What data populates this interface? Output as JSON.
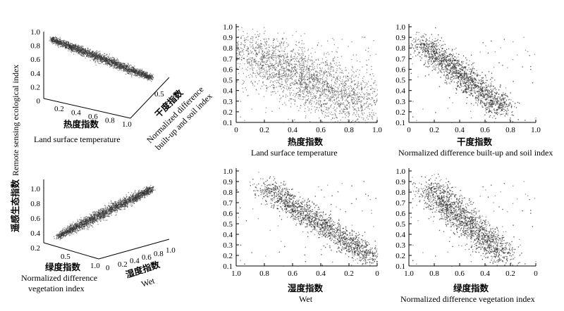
{
  "figure": {
    "y_label_cn": "遥感生态指数",
    "y_label_en": "Remote sensing ecological index"
  },
  "chart_data": [
    {
      "id": "p3d_top",
      "type": "scatter",
      "projection": "3d",
      "z_label": "",
      "z_ticks": [
        "0",
        "0.2",
        "0.4",
        "0.6",
        "0.8",
        "1.0"
      ],
      "x_label_cn": "热度指数",
      "x_label_en": "Land surface temperature",
      "x_ticks": [
        "0.2",
        "0.4",
        "0.6",
        "0.8",
        "1.0"
      ],
      "y_label_cn": "干度指数",
      "y_label_en": "Normalized difference built-up and soil index",
      "y_label_en_lines": [
        "Normalized difference",
        "built-up and soil index"
      ],
      "y_ticks": [
        "0.5"
      ],
      "trend": {
        "from": [
          0.05,
          0.9
        ],
        "to": [
          1.0,
          0.3
        ]
      },
      "n_points": 2400
    },
    {
      "id": "p3d_bottom",
      "type": "scatter",
      "projection": "3d",
      "z_ticks": [
        "0.2",
        "0.4",
        "0.6",
        "0.8",
        "1.0"
      ],
      "x_label_cn": "绿度指数",
      "x_label_en": "Normalized difference vegetation index",
      "x_label_en_lines": [
        "Normalized difference",
        "vegetation index"
      ],
      "x_ticks": [
        "0.5",
        "1.0"
      ],
      "y_label_cn": "湿度指数",
      "y_label_en": "Wet",
      "y_ticks": [
        "0",
        "0.2",
        "0.4",
        "0.6",
        "0.8",
        "1.0"
      ],
      "trend": {
        "from": [
          0.0,
          0.2
        ],
        "to": [
          1.0,
          0.8
        ]
      },
      "n_points": 2400
    },
    {
      "id": "lst",
      "type": "scatter",
      "xlabel_cn": "热度指数",
      "xlabel_en": "Land surface temperature",
      "x_ticks": [
        "0",
        "0.2",
        "0.4",
        "0.6",
        "0.8",
        "1.0"
      ],
      "y_ticks": [
        "0.1",
        "0.2",
        "0.3",
        "0.4",
        "0.5",
        "0.6",
        "0.7",
        "0.8",
        "0.9",
        "1.0"
      ],
      "xlim": [
        0,
        1.0
      ],
      "ylim": [
        0.1,
        1.0
      ],
      "x_reversed": false,
      "trend": {
        "x0": 0.05,
        "y0": 0.8,
        "x1": 0.9,
        "y1": 0.25,
        "spread_x": 0.14,
        "spread_y": 0.11
      },
      "n_points": 2600
    },
    {
      "id": "ndbsi",
      "type": "scatter",
      "xlabel_cn": "干度指数",
      "xlabel_en": "Normalized difference built-up and soil index",
      "x_ticks": [
        "0",
        "0.2",
        "0.4",
        "0.6",
        "0.8",
        "1.0"
      ],
      "y_ticks": [
        "0.1",
        "0.2",
        "0.3",
        "0.4",
        "0.5",
        "0.6",
        "0.7",
        "0.8",
        "0.9",
        "1.0"
      ],
      "xlim": [
        0,
        1.0
      ],
      "ylim": [
        0.1,
        1.0
      ],
      "x_reversed": false,
      "trend": {
        "x0": 0.1,
        "y0": 0.85,
        "x1": 0.75,
        "y1": 0.22,
        "spread_x": 0.06,
        "spread_y": 0.05
      },
      "n_points": 2600
    },
    {
      "id": "wet",
      "type": "scatter",
      "xlabel_cn": "湿度指数",
      "xlabel_en": "Wet",
      "x_ticks": [
        "1.0",
        "0.8",
        "0.6",
        "0.4",
        "0.2",
        "0"
      ],
      "y_ticks": [
        "0.1",
        "0.2",
        "0.3",
        "0.4",
        "0.5",
        "0.6",
        "0.7",
        "0.8",
        "0.9",
        "1.0"
      ],
      "xlim": [
        1.0,
        0
      ],
      "ylim": [
        0.1,
        1.0
      ],
      "x_reversed": true,
      "trend": {
        "x0": 0.8,
        "y0": 0.85,
        "x1": 0.02,
        "y1": 0.17,
        "spread_x": 0.05,
        "spread_y": 0.05
      },
      "n_points": 2600
    },
    {
      "id": "ndvi",
      "type": "scatter",
      "xlabel_cn": "绿度指数",
      "xlabel_en": "Normalized difference vegetation index",
      "x_ticks": [
        "1.0",
        "0.8",
        "0.6",
        "0.4",
        "0.2",
        "0"
      ],
      "y_ticks": [
        "0.1",
        "0.2",
        "0.3",
        "0.4",
        "0.5",
        "0.6",
        "0.7",
        "0.8",
        "0.9",
        "1.0"
      ],
      "xlim": [
        1.0,
        0
      ],
      "ylim": [
        0.1,
        1.0
      ],
      "x_reversed": true,
      "trend": {
        "x0": 0.85,
        "y0": 0.85,
        "x1": 0.25,
        "y1": 0.2,
        "spread_x": 0.07,
        "spread_y": 0.06
      },
      "n_points": 2600
    }
  ]
}
